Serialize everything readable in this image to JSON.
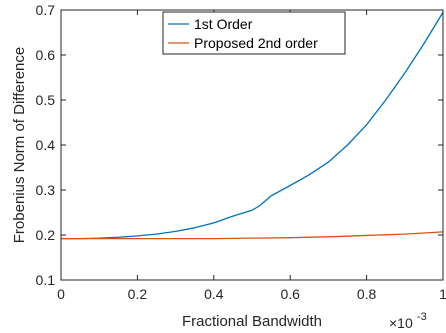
{
  "chart_data": {
    "type": "line",
    "title": "",
    "xlabel": "Fractional Bandwidth",
    "ylabel": "Frobenius Norm of Difference",
    "x_exponent_label": "×10",
    "x_exponent_power": "-3",
    "xlim": [
      0,
      1
    ],
    "ylim": [
      0.1,
      0.7
    ],
    "x_ticks": [
      0,
      0.2,
      0.4,
      0.6,
      0.8,
      1
    ],
    "x_tick_labels": [
      "0",
      "0.2",
      "0.4",
      "0.6",
      "0.8",
      "1"
    ],
    "y_ticks": [
      0.1,
      0.2,
      0.3,
      0.4,
      0.5,
      0.6,
      0.7
    ],
    "y_tick_labels": [
      "0.1",
      "0.2",
      "0.3",
      "0.4",
      "0.5",
      "0.6",
      "0.7"
    ],
    "grid": false,
    "legend_position": "top-center",
    "series": [
      {
        "name": "1st Order",
        "color": "#0072BD",
        "x": [
          0,
          0.05,
          0.1,
          0.15,
          0.2,
          0.25,
          0.3,
          0.35,
          0.4,
          0.45,
          0.5,
          0.52,
          0.55,
          0.6,
          0.65,
          0.7,
          0.75,
          0.8,
          0.85,
          0.9,
          0.95,
          1.0
        ],
        "y": [
          0.192,
          0.192,
          0.193,
          0.195,
          0.198,
          0.202,
          0.208,
          0.216,
          0.227,
          0.242,
          0.255,
          0.265,
          0.287,
          0.31,
          0.334,
          0.362,
          0.4,
          0.445,
          0.5,
          0.56,
          0.625,
          0.695
        ]
      },
      {
        "name": "Proposed 2nd order",
        "color": "#D95319",
        "x": [
          0,
          0.1,
          0.2,
          0.3,
          0.4,
          0.5,
          0.6,
          0.7,
          0.8,
          0.9,
          1.0
        ],
        "y": [
          0.192,
          0.192,
          0.192,
          0.192,
          0.192,
          0.193,
          0.194,
          0.196,
          0.199,
          0.202,
          0.207
        ]
      }
    ]
  }
}
